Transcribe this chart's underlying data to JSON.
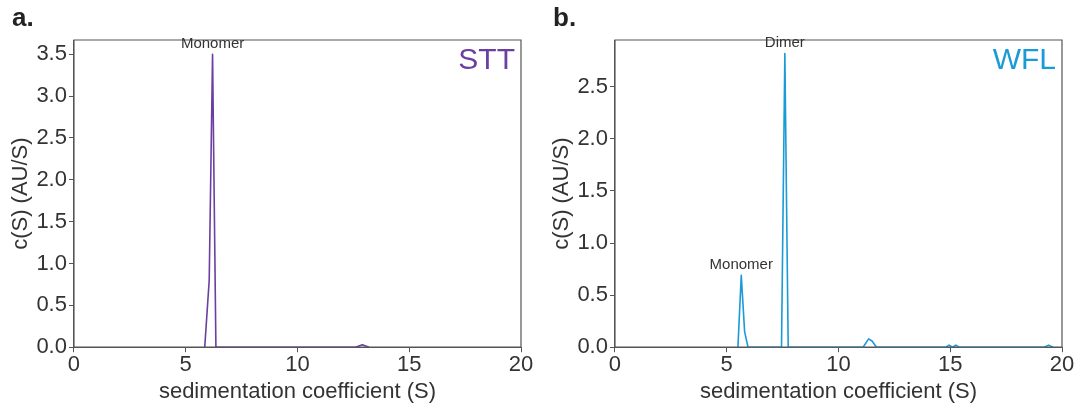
{
  "chart_data": [
    {
      "type": "line",
      "title": "a.",
      "xlabel": "sedimentation coefficient (S)",
      "ylabel": "c(S) (AU/S)",
      "xlim": [
        0,
        20
      ],
      "xticks": [
        0,
        5,
        10,
        15,
        20
      ],
      "ylim": [
        0,
        3.67
      ],
      "yticks": [
        {
          "value": 0,
          "label": "0.0"
        },
        {
          "value": 0.5,
          "label": "0.5"
        },
        {
          "value": 1,
          "label": "1.0"
        },
        {
          "value": 1.5,
          "label": "1.5"
        },
        {
          "value": 2,
          "label": "2.0"
        },
        {
          "value": 2.5,
          "label": "2.5"
        },
        {
          "value": 3,
          "label": "3.0"
        },
        {
          "value": 3.5,
          "label": "3.5"
        }
      ],
      "grid": false,
      "legend": "top right",
      "marker": "none",
      "line_style": "solid",
      "annotations": [
        {
          "text": "Monomer",
          "x": 6.2,
          "y": 3.5
        }
      ],
      "series": [
        {
          "name": "STT",
          "color": "#6a3fa0",
          "x": [
            5.85,
            6.05,
            6.2,
            6.35,
            12.6,
            12.9,
            13.2
          ],
          "values": [
            0,
            0.8,
            3.5,
            0,
            0,
            0.03,
            0
          ]
        }
      ]
    },
    {
      "type": "line",
      "title": "b.",
      "xlabel": "sedimentation coefficient (S)",
      "ylabel": "c(S) (AU/S)",
      "xlim": [
        0,
        20
      ],
      "xticks": [
        0,
        5,
        10,
        15,
        20
      ],
      "ylim": [
        0,
        2.95
      ],
      "yticks": [
        {
          "value": 0,
          "label": "0.0"
        },
        {
          "value": 0.5,
          "label": "0.5"
        },
        {
          "value": 1,
          "label": "1.0"
        },
        {
          "value": 1.5,
          "label": "1.5"
        },
        {
          "value": 2,
          "label": "2.0"
        },
        {
          "value": 2.5,
          "label": "2.5"
        }
      ],
      "grid": false,
      "legend": "top right",
      "marker": "none",
      "line_style": "solid",
      "annotations": [
        {
          "text": "Monomer",
          "x": 5.65,
          "y": 0.69
        },
        {
          "text": "Dimer",
          "x": 7.6,
          "y": 2.82
        }
      ],
      "series": [
        {
          "name": "WFL",
          "color": "#1a9ad6",
          "x": [
            5.5,
            5.65,
            5.8,
            5.95,
            7.45,
            7.6,
            7.75,
            11.1,
            11.35,
            11.5,
            11.7,
            14.8,
            14.95,
            15.1,
            15.25,
            15.4,
            19.2,
            19.4,
            19.6
          ],
          "values": [
            0,
            0.69,
            0.15,
            0,
            0,
            2.82,
            0,
            0,
            0.08,
            0.06,
            0,
            0,
            0.02,
            0,
            0.02,
            0,
            0,
            0.02,
            0
          ]
        }
      ]
    }
  ]
}
